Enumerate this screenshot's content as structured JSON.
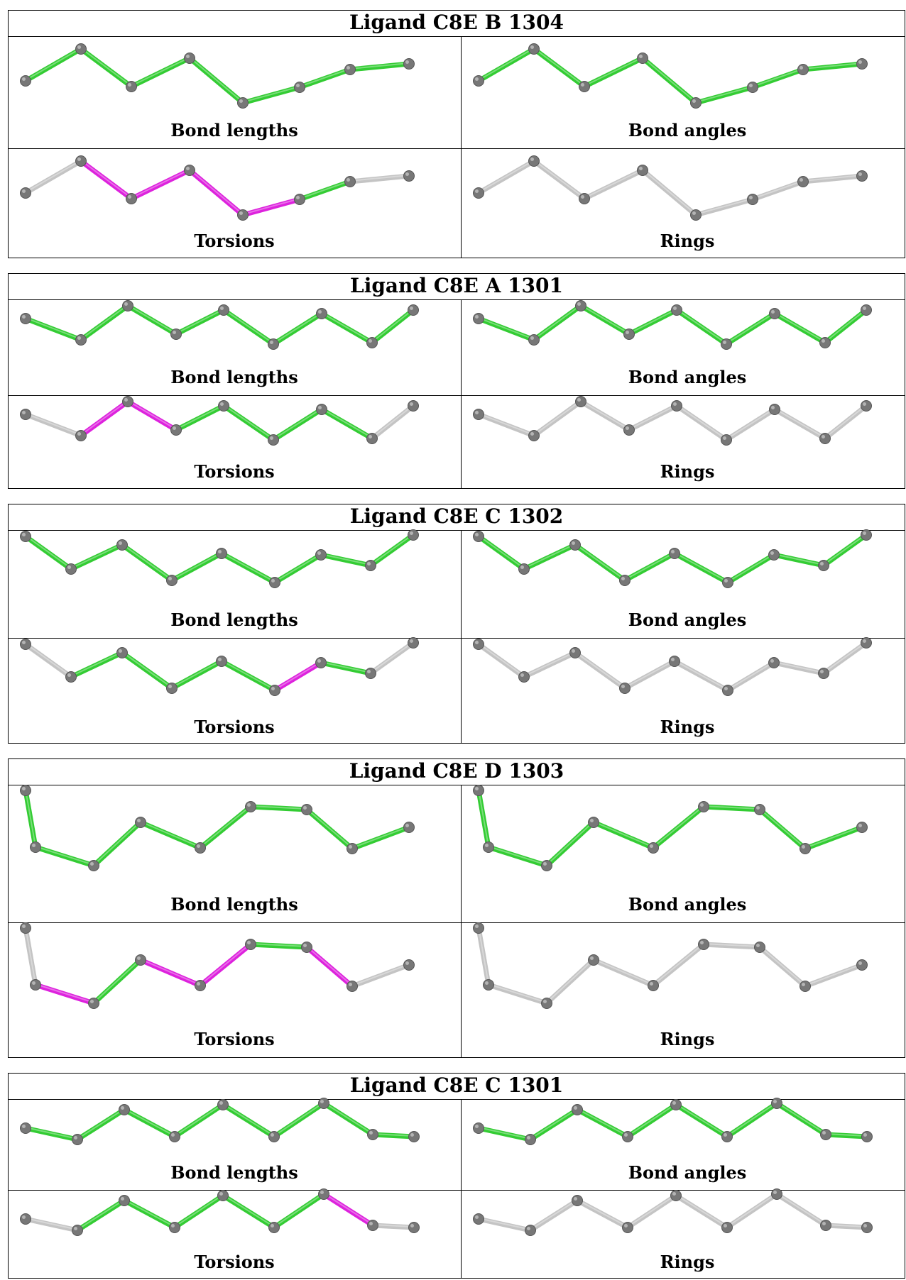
{
  "panel_labels": [
    "Bond lengths",
    "Bond angles",
    "Torsions",
    "Rings"
  ],
  "colors": {
    "good_bond": "#33cc33",
    "outlier_bond": "#dd22dd",
    "neutral_bond": "#c4c4c4",
    "atom": "#777777",
    "border": "#000000"
  },
  "ligands": [
    {
      "title": "Ligand C8E B 1304",
      "bond_colors": {
        "lengths": [
          "green",
          "green",
          "green",
          "green",
          "green",
          "green",
          "green"
        ],
        "angles": [
          "green",
          "green",
          "green",
          "green",
          "green",
          "green",
          "green"
        ],
        "torsions": [
          "grey",
          "magenta",
          "magenta",
          "magenta",
          "magenta",
          "green",
          "grey"
        ],
        "rings": [
          "grey",
          "grey",
          "grey",
          "grey",
          "grey",
          "grey",
          "grey"
        ]
      }
    },
    {
      "title": "Ligand C8E A 1301",
      "bond_colors": {
        "lengths": [
          "green",
          "green",
          "green",
          "green",
          "green",
          "green",
          "green",
          "green"
        ],
        "angles": [
          "green",
          "green",
          "green",
          "green",
          "green",
          "green",
          "green",
          "green"
        ],
        "torsions": [
          "grey",
          "magenta",
          "magenta",
          "green",
          "green",
          "green",
          "green",
          "grey"
        ],
        "rings": [
          "grey",
          "grey",
          "grey",
          "grey",
          "grey",
          "grey",
          "grey",
          "grey"
        ]
      }
    },
    {
      "title": "Ligand C8E C 1302",
      "bond_colors": {
        "lengths": [
          "green",
          "green",
          "green",
          "green",
          "green",
          "green",
          "green",
          "green"
        ],
        "angles": [
          "green",
          "green",
          "green",
          "green",
          "green",
          "green",
          "green",
          "green"
        ],
        "torsions": [
          "grey",
          "green",
          "green",
          "green",
          "green",
          "magenta",
          "green",
          "grey"
        ],
        "rings": [
          "grey",
          "grey",
          "grey",
          "grey",
          "grey",
          "grey",
          "grey",
          "grey"
        ]
      }
    },
    {
      "title": "Ligand C8E D 1303",
      "bond_colors": {
        "lengths": [
          "green",
          "green",
          "green",
          "green",
          "green",
          "green",
          "green",
          "green"
        ],
        "angles": [
          "green",
          "green",
          "green",
          "green",
          "green",
          "green",
          "green",
          "green"
        ],
        "torsions": [
          "grey",
          "magenta",
          "green",
          "magenta",
          "magenta",
          "green",
          "magenta",
          "grey"
        ],
        "rings": [
          "grey",
          "grey",
          "grey",
          "grey",
          "grey",
          "grey",
          "grey",
          "grey"
        ]
      }
    },
    {
      "title": "Ligand C8E C 1301",
      "bond_colors": {
        "lengths": [
          "green",
          "green",
          "green",
          "green",
          "green",
          "green",
          "green",
          "green"
        ],
        "angles": [
          "green",
          "green",
          "green",
          "green",
          "green",
          "green",
          "green",
          "green"
        ],
        "torsions": [
          "grey",
          "green",
          "green",
          "green",
          "green",
          "green",
          "magenta",
          "grey"
        ],
        "rings": [
          "grey",
          "grey",
          "grey",
          "grey",
          "grey",
          "grey",
          "grey",
          "grey"
        ]
      }
    }
  ]
}
